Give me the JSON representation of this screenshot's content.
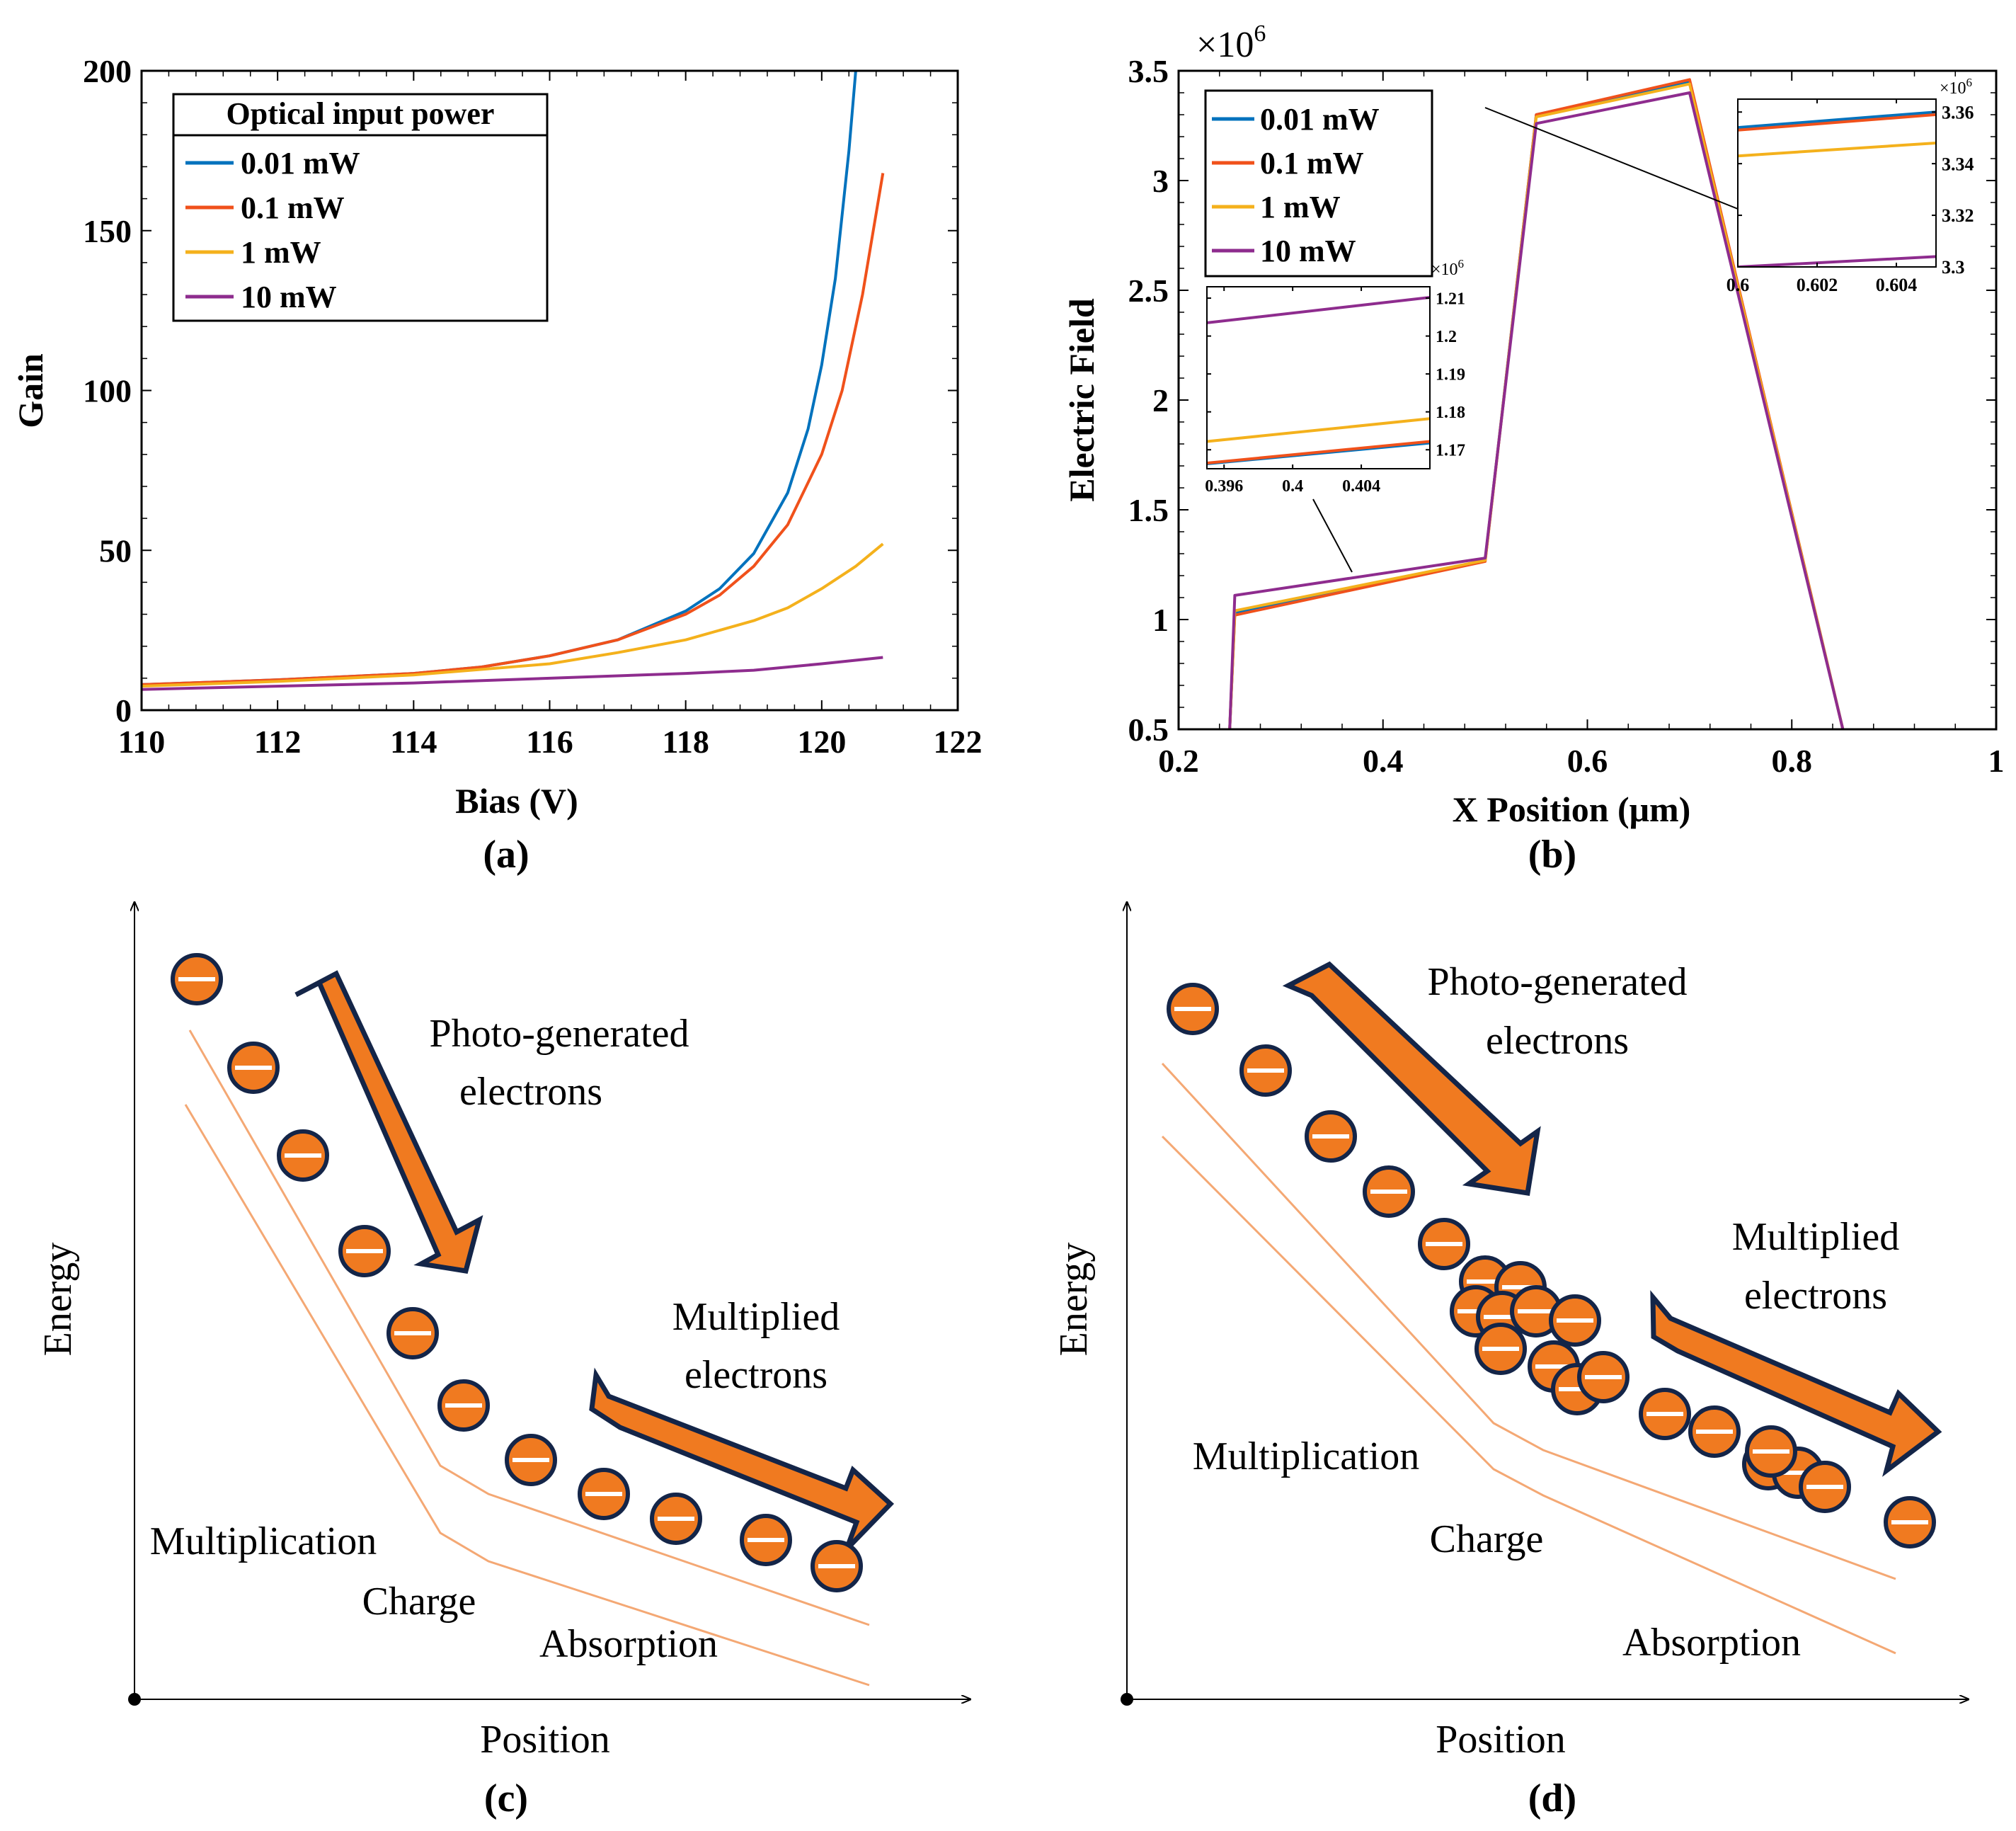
{
  "colors": {
    "blue": "#0072BD",
    "red": "#F0511B",
    "yellow": "#F4B11C",
    "purple": "#8E2C8E",
    "orange": "#F07A20",
    "navy": "#142548",
    "lineOrange": "#F4A874",
    "axis": "#000000"
  },
  "chart_data": [
    {
      "id": "a",
      "type": "line",
      "panel_label": "(a)",
      "xlabel": "Bias (V)",
      "ylabel": "Gain",
      "xlim": [
        110,
        122
      ],
      "ylim": [
        0,
        200
      ],
      "xticks": [
        "110",
        "112",
        "114",
        "116",
        "118",
        "120",
        "122"
      ],
      "yticks": [
        "0",
        "50",
        "100",
        "150",
        "200"
      ],
      "legend_title": "Optical input power",
      "series": [
        {
          "name": "0.01 mW",
          "color": "#0072BD",
          "x": [
            110,
            112,
            114,
            115,
            116,
            117,
            118,
            118.5,
            119,
            119.5,
            119.8,
            120,
            120.2,
            120.4,
            120.5
          ],
          "y": [
            8,
            9.5,
            11.5,
            13.5,
            17,
            22,
            31,
            38,
            49,
            68,
            88,
            108,
            135,
            175,
            200
          ]
        },
        {
          "name": "0.1 mW",
          "color": "#F0511B",
          "x": [
            110,
            112,
            114,
            115,
            116,
            117,
            118,
            118.5,
            119,
            119.5,
            120,
            120.3,
            120.6,
            120.9
          ],
          "y": [
            8,
            9.5,
            11.5,
            13.5,
            17,
            22,
            30,
            36,
            45,
            58,
            80,
            100,
            130,
            168
          ]
        },
        {
          "name": "1 mW",
          "color": "#F4B11C",
          "x": [
            110,
            112,
            114,
            116,
            117,
            118,
            119,
            119.5,
            120,
            120.5,
            120.9
          ],
          "y": [
            7.5,
            9,
            11,
            14.5,
            18,
            22,
            28,
            32,
            38,
            45,
            52
          ]
        },
        {
          "name": "10 mW",
          "color": "#8E2C8E",
          "x": [
            110,
            112,
            114,
            116,
            118,
            119,
            120,
            120.9
          ],
          "y": [
            6.5,
            7.5,
            8.5,
            10,
            11.5,
            12.5,
            14.5,
            16.5
          ]
        }
      ]
    },
    {
      "id": "b",
      "type": "line",
      "panel_label": "(b)",
      "xlabel": "X Position (μm)",
      "ylabel": "Electric Field",
      "exponent_label": "×10",
      "exponent_power": "6",
      "xlim": [
        0.2,
        1.0
      ],
      "ylim": [
        0.5,
        3.5
      ],
      "xticks": [
        "0.2",
        "0.4",
        "0.6",
        "0.8",
        "1"
      ],
      "yticks": [
        "0.5",
        "1",
        "1.5",
        "2",
        "2.5",
        "3",
        "3.5"
      ],
      "series": [
        {
          "name": "0.01 mW",
          "color": "#0072BD",
          "x": [
            0.25,
            0.255,
            0.5,
            0.55,
            0.7,
            0.85
          ],
          "y": [
            0.5,
            1.03,
            1.27,
            3.3,
            3.45,
            0.5
          ]
        },
        {
          "name": "0.1 mW",
          "color": "#F0511B",
          "x": [
            0.25,
            0.255,
            0.5,
            0.55,
            0.7,
            0.85
          ],
          "y": [
            0.5,
            1.02,
            1.265,
            3.3,
            3.46,
            0.5
          ]
        },
        {
          "name": "1 mW",
          "color": "#F4B11C",
          "x": [
            0.25,
            0.255,
            0.5,
            0.55,
            0.7,
            0.85
          ],
          "y": [
            0.5,
            1.04,
            1.27,
            3.29,
            3.44,
            0.5
          ]
        },
        {
          "name": "10 mW",
          "color": "#8E2C8E",
          "x": [
            0.25,
            0.255,
            0.5,
            0.55,
            0.7,
            0.85
          ],
          "y": [
            0.5,
            1.11,
            1.28,
            3.26,
            3.4,
            0.5
          ]
        }
      ],
      "insets": [
        {
          "id": "b-inset-left",
          "xlim": [
            0.395,
            0.408
          ],
          "ylim": [
            1.165,
            1.213
          ],
          "xticks": [
            "0.396",
            "0.4",
            "0.404"
          ],
          "yticks": [
            "1.17",
            "1.18",
            "1.19",
            "1.2",
            "1.21"
          ],
          "exponent_label": "×10",
          "exponent_power": "6",
          "series": [
            {
              "name": "0.01 mW",
              "color": "#0072BD",
              "x": [
                0.395,
                0.408
              ],
              "y": [
                1.1663,
                1.1718
              ]
            },
            {
              "name": "0.1 mW",
              "color": "#F0511B",
              "x": [
                0.395,
                0.408
              ],
              "y": [
                1.1665,
                1.1722
              ]
            },
            {
              "name": "1 mW",
              "color": "#F4B11C",
              "x": [
                0.395,
                0.408
              ],
              "y": [
                1.1722,
                1.1782
              ]
            },
            {
              "name": "10 mW",
              "color": "#8E2C8E",
              "x": [
                0.395,
                0.408
              ],
              "y": [
                1.2035,
                1.2102
              ]
            }
          ]
        },
        {
          "id": "b-inset-right",
          "xlim": [
            0.6,
            0.605
          ],
          "ylim": [
            3.3,
            3.365
          ],
          "xticks": [
            "0.6",
            "0.602",
            "0.604"
          ],
          "yticks": [
            "3.3",
            "3.32",
            "3.34",
            "3.36"
          ],
          "exponent_label": "×10",
          "exponent_power": "6",
          "series": [
            {
              "name": "0.01 mW",
              "color": "#0072BD",
              "x": [
                0.6,
                0.605
              ],
              "y": [
                3.354,
                3.36
              ]
            },
            {
              "name": "0.1 mW",
              "color": "#F0511B",
              "x": [
                0.6,
                0.605
              ],
              "y": [
                3.353,
                3.359
              ]
            },
            {
              "name": "1 mW",
              "color": "#F4B11C",
              "x": [
                0.6,
                0.605
              ],
              "y": [
                3.343,
                3.348
              ]
            },
            {
              "name": "10 mW",
              "color": "#8E2C8E",
              "x": [
                0.6,
                0.605
              ],
              "y": [
                3.3,
                3.304
              ]
            }
          ]
        }
      ]
    }
  ],
  "diagram_c": {
    "panel_label": "(c)",
    "ylabel": "Energy",
    "xlabel": "Position",
    "arrow1_text": [
      "Photo-generated",
      "electrons"
    ],
    "arrow2_text": [
      "Multiplied",
      "electrons"
    ],
    "regions": [
      "Multiplication",
      "Charge",
      "Absorption"
    ]
  },
  "diagram_d": {
    "panel_label": "(d)",
    "ylabel": "Energy",
    "xlabel": "Position",
    "arrow1_text": [
      "Photo-generated",
      "electrons"
    ],
    "arrow2_text": [
      "Multiplied",
      "electrons"
    ],
    "regions": [
      "Multiplication",
      "Charge",
      "Absorption"
    ]
  }
}
